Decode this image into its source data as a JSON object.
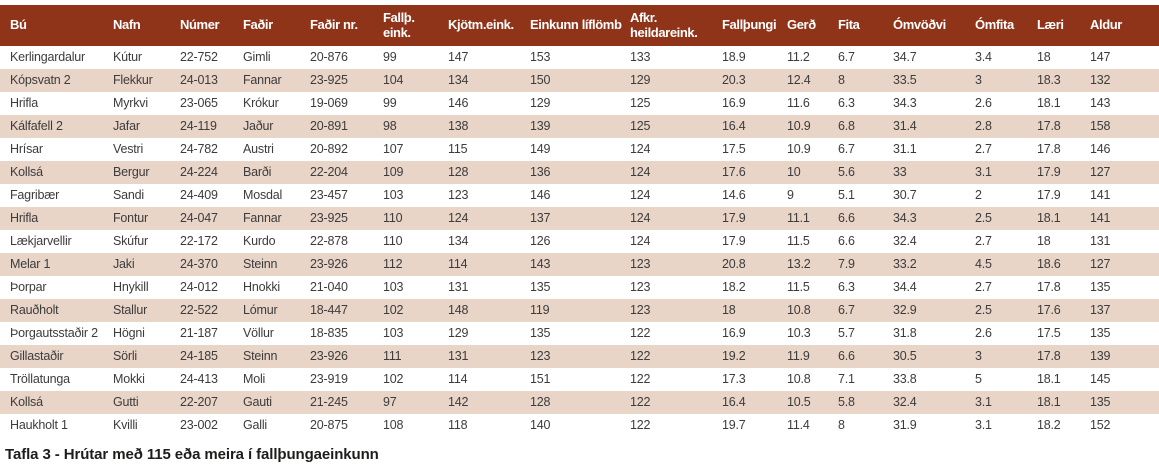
{
  "caption": "Tafla 3 - Hrútar með 115 eða meira í fallþungaeinkunn",
  "colors": {
    "header_bg": "#8f3319",
    "row_alt_bg": "#e9d4c8",
    "row_bg": "#ffffff",
    "body_text": "#3c3c3b",
    "header_text": "#ffffff"
  },
  "table": {
    "columns": [
      "Bú",
      "Nafn",
      "Númer",
      "Faðir",
      "Faðir nr.",
      "Fallþ. eink.",
      "Kjötm.eink.",
      "Einkunn líflömb",
      "Afkr. heildareink.",
      "Fallþungi",
      "Gerð",
      "Fita",
      "Ómvöðvi",
      "Ómfita",
      "Læri",
      "Aldur"
    ],
    "rows": [
      [
        "Kerlingardalur",
        "Kútur",
        "22-752",
        "Gimli",
        "20-876",
        "99",
        "147",
        "153",
        "133",
        "18.9",
        "11.2",
        "6.7",
        "34.7",
        "3.4",
        "18",
        "147"
      ],
      [
        "Kópsvatn 2",
        "Flekkur",
        "24-013",
        "Fannar",
        "23-925",
        "104",
        "134",
        "150",
        "129",
        "20.3",
        "12.4",
        "8",
        "33.5",
        "3",
        "18.3",
        "132"
      ],
      [
        "Hrifla",
        "Myrkvi",
        "23-065",
        "Krókur",
        "19-069",
        "99",
        "146",
        "129",
        "125",
        "16.9",
        "11.6",
        "6.3",
        "34.3",
        "2.6",
        "18.1",
        "143"
      ],
      [
        "Kálfafell 2",
        "Jafar",
        "24-119",
        "Jaður",
        "20-891",
        "98",
        "138",
        "139",
        "125",
        "16.4",
        "10.9",
        "6.8",
        "31.4",
        "2.8",
        "17.8",
        "158"
      ],
      [
        "Hrísar",
        "Vestri",
        "24-782",
        "Austri",
        "20-892",
        "107",
        "115",
        "149",
        "124",
        "17.5",
        "10.9",
        "6.7",
        "31.1",
        "2.7",
        "17.8",
        "146"
      ],
      [
        "Kollsá",
        "Bergur",
        "24-224",
        "Barði",
        "22-204",
        "109",
        "128",
        "136",
        "124",
        "17.6",
        "10",
        "5.6",
        "33",
        "3.1",
        "17.9",
        "127"
      ],
      [
        "Fagribær",
        "Sandi",
        "24-409",
        "Mosdal",
        "23-457",
        "103",
        "123",
        "146",
        "124",
        "14.6",
        "9",
        "5.1",
        "30.7",
        "2",
        "17.9",
        "141"
      ],
      [
        "Hrifla",
        "Fontur",
        "24-047",
        "Fannar",
        "23-925",
        "110",
        "124",
        "137",
        "124",
        "17.9",
        "11.1",
        "6.6",
        "34.3",
        "2.5",
        "18.1",
        "141"
      ],
      [
        "Lækjarvellir",
        "Skúfur",
        "22-172",
        "Kurdo",
        "22-878",
        "110",
        "134",
        "126",
        "124",
        "17.9",
        "11.5",
        "6.6",
        "32.4",
        "2.7",
        "18",
        "131"
      ],
      [
        "Melar 1",
        "Jaki",
        "24-370",
        "Steinn",
        "23-926",
        "112",
        "114",
        "143",
        "123",
        "20.8",
        "13.2",
        "7.9",
        "33.2",
        "4.5",
        "18.6",
        "127"
      ],
      [
        "Þorpar",
        "Hnykill",
        "24-012",
        "Hnokki",
        "21-040",
        "103",
        "131",
        "135",
        "123",
        "18.2",
        "11.5",
        "6.3",
        "34.4",
        "2.7",
        "17.8",
        "135"
      ],
      [
        "Rauðholt",
        "Stallur",
        "22-522",
        "Lómur",
        "18-447",
        "102",
        "148",
        "119",
        "123",
        "18",
        "10.8",
        "6.7",
        "32.9",
        "2.5",
        "17.6",
        "137"
      ],
      [
        "Þorgautsstaðir 2",
        "Högni",
        "21-187",
        "Völlur",
        "18-835",
        "103",
        "129",
        "135",
        "122",
        "16.9",
        "10.3",
        "5.7",
        "31.8",
        "2.6",
        "17.5",
        "135"
      ],
      [
        "Gillastaðir",
        "Sörli",
        "24-185",
        "Steinn",
        "23-926",
        "111",
        "131",
        "123",
        "122",
        "19.2",
        "11.9",
        "6.6",
        "30.5",
        "3",
        "17.8",
        "139"
      ],
      [
        "Tröllatunga",
        "Mokki",
        "24-413",
        "Moli",
        "23-919",
        "102",
        "114",
        "151",
        "122",
        "17.3",
        "10.8",
        "7.1",
        "33.8",
        "5",
        "18.1",
        "145"
      ],
      [
        "Kollsá",
        "Gutti",
        "22-207",
        "Gauti",
        "21-245",
        "97",
        "142",
        "128",
        "122",
        "16.4",
        "10.5",
        "5.8",
        "32.4",
        "3.1",
        "18.1",
        "135"
      ],
      [
        "Haukholt 1",
        "Kvilli",
        "23-002",
        "Galli",
        "20-875",
        "108",
        "118",
        "140",
        "122",
        "19.7",
        "11.4",
        "8",
        "31.9",
        "3.1",
        "18.2",
        "152"
      ]
    ]
  }
}
